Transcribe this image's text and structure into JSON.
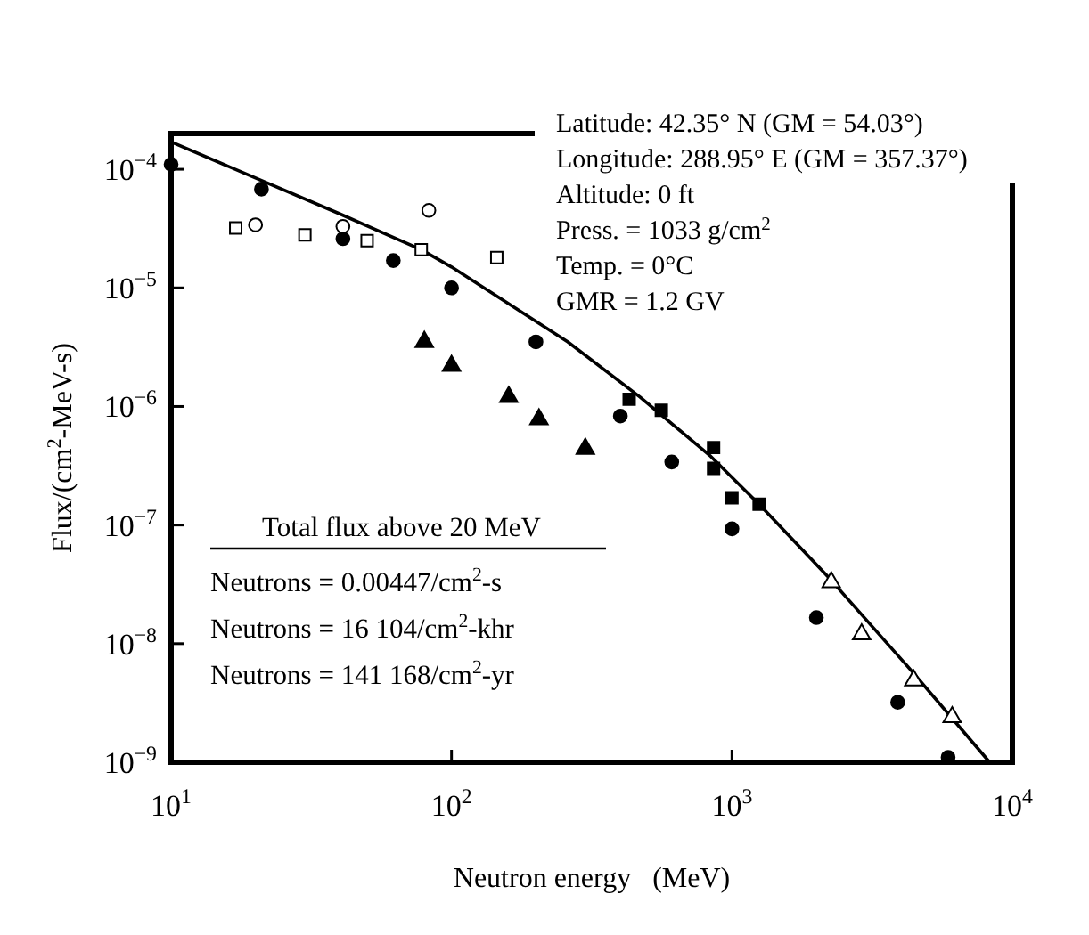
{
  "chart_data": {
    "type": "scatter",
    "xlabel": "Neutron energy   (MeV)",
    "ylabel": "Flux/(cm$^{2}$-MeV-s)",
    "log": "xy",
    "xlim": [
      10,
      10000
    ],
    "ylim": [
      1e-09,
      0.0002
    ],
    "xticks": [
      {
        "value": 10,
        "label": "10$^{1}$"
      },
      {
        "value": 100,
        "label": "10$^{2}$"
      },
      {
        "value": 1000,
        "label": "10$^{3}$"
      },
      {
        "value": 10000,
        "label": "10$^{4}$"
      }
    ],
    "yticks": [
      {
        "value": 1e-09,
        "label": "10$^{−9}$"
      },
      {
        "value": 1e-08,
        "label": "10$^{−8}$"
      },
      {
        "value": 1e-07,
        "label": "10$^{−7}$"
      },
      {
        "value": 1e-06,
        "label": "10$^{−6}$"
      },
      {
        "value": 1e-05,
        "label": "10$^{−5}$"
      },
      {
        "value": 0.0001,
        "label": "10$^{−4}$"
      }
    ],
    "grid": false,
    "series": [
      {
        "type": "line",
        "color": "#000000",
        "marker": "none",
        "line_style": "solid",
        "x": [
          10,
          40,
          78,
          100,
          260,
          470,
          840,
          1250,
          2240,
          4370,
          8300
        ],
        "values": [
          0.00017,
          4.2e-05,
          2.1e-05,
          1.5e-05,
          3.5e-06,
          1.2e-06,
          3.8e-07,
          1.5e-07,
          3.5e-08,
          5.9e-09,
          1e-09
        ]
      },
      {
        "color": "#000000",
        "marker": "circle",
        "x": [
          10,
          21,
          41,
          62,
          100,
          200,
          400,
          610,
          1000,
          2000,
          3900,
          5900
        ],
        "values": [
          0.00011,
          6.8e-05,
          2.6e-05,
          1.7e-05,
          1e-05,
          3.5e-06,
          8.3e-07,
          3.4e-07,
          9.3e-08,
          1.66e-08,
          3.2e-09,
          1.1e-09
        ]
      },
      {
        "color": "#ffffff",
        "marker": "circle",
        "x": [
          20,
          41,
          83
        ],
        "values": [
          3.4e-05,
          3.3e-05,
          4.5e-05
        ]
      },
      {
        "color": "#ffffff",
        "marker": "square",
        "x": [
          17,
          30,
          50,
          78,
          145
        ],
        "values": [
          3.2e-05,
          2.8e-05,
          2.5e-05,
          2.1e-05,
          1.8e-05
        ]
      },
      {
        "color": "#000000",
        "marker": "square",
        "x": [
          430,
          560,
          860,
          860,
          1000,
          1250
        ],
        "values": [
          1.15e-06,
          9.3e-07,
          4.5e-07,
          3e-07,
          1.7e-07,
          1.5e-07
        ]
      },
      {
        "color": "#000000",
        "marker": "triangle",
        "x": [
          80,
          100,
          160,
          205,
          300
        ],
        "values": [
          3.5e-06,
          2.2e-06,
          1.2e-06,
          7.8e-07,
          4.4e-07
        ]
      },
      {
        "color": "#ffffff",
        "marker": "triangle",
        "x": [
          2260,
          2900,
          4450,
          6100
        ],
        "values": [
          3.3e-08,
          1.2e-08,
          4.9e-09,
          2.4e-09
        ]
      }
    ],
    "annotations": [
      "Latitude: 42.35° N (GM = 54.03°)",
      "Longitude: 288.95° E (GM = 357.37°)",
      "Altitude: 0 ft",
      "Press. = 1033 g/cm$^{2}$",
      "Temp. = 0°C",
      "GMR = 1.2 GV",
      "Total flux above 20 MeV",
      "Neutrons = 0.00447/cm$^{2}$-s",
      "Neutrons = 16 104/cm$^{2}$-khr",
      "Neutrons = 141 168/cm$^{2}$-yr"
    ]
  }
}
